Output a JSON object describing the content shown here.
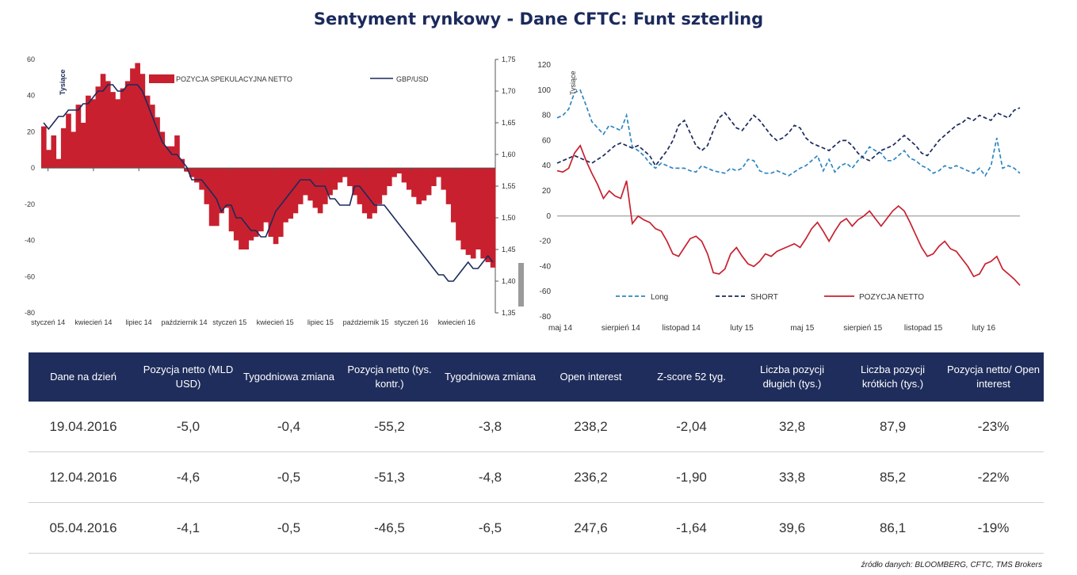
{
  "title": "Sentyment rynkowy - Dane CFTC:  Funt szterling",
  "source": "źródło danych: BLOOMBERG, CFTC, TMS Brokers",
  "colors": {
    "navy": "#1f2d5c",
    "red": "#c8202f",
    "line_navy": "#1b2a5c",
    "long_blue": "#2e86c1"
  },
  "chart_data": [
    {
      "type": "bar",
      "ylabel": "Tysiące",
      "ylim": [
        -80,
        60
      ],
      "yticks": [
        "60",
        "40",
        "20",
        "0",
        "-20",
        "-40",
        "-60",
        "-80"
      ],
      "y2lim": [
        1.35,
        1.75
      ],
      "y2ticks": [
        "1,75",
        "1,70",
        "1,65",
        "1,60",
        "1,55",
        "1,50",
        "1,45",
        "1,40",
        "1,35"
      ],
      "xticks": [
        "styczeń 14",
        "kwiecień 14",
        "lipiec 14",
        "październik 14",
        "styczeń 15",
        "kwiecień 15",
        "lipiec 15",
        "październik 15",
        "styczeń 16",
        "kwiecień 16"
      ],
      "series": [
        {
          "name": "POZYCJA SPEKULACYJNA NETTO",
          "type": "bar",
          "axis": "left",
          "values": [
            23,
            10,
            18,
            5,
            22,
            30,
            20,
            35,
            25,
            40,
            38,
            45,
            52,
            48,
            42,
            38,
            44,
            48,
            55,
            58,
            52,
            40,
            35,
            28,
            20,
            12,
            12,
            18,
            5,
            -2,
            -5,
            -8,
            -12,
            -20,
            -32,
            -32,
            -25,
            -22,
            -35,
            -40,
            -45,
            -45,
            -40,
            -38,
            -35,
            -30,
            -38,
            -42,
            -38,
            -30,
            -28,
            -25,
            -20,
            -15,
            -18,
            -22,
            -25,
            -20,
            -15,
            -12,
            -8,
            -5,
            -10,
            -15,
            -20,
            -25,
            -28,
            -25,
            -20,
            -15,
            -10,
            -5,
            -3,
            -8,
            -12,
            -16,
            -20,
            -18,
            -15,
            -10,
            -5,
            -12,
            -20,
            -30,
            -40,
            -45,
            -48,
            -50,
            -45,
            -50,
            -52,
            -55
          ]
        },
        {
          "name": "GBP/USD",
          "type": "line",
          "axis": "right",
          "values": [
            1.65,
            1.64,
            1.65,
            1.66,
            1.66,
            1.67,
            1.67,
            1.67,
            1.68,
            1.68,
            1.69,
            1.7,
            1.7,
            1.71,
            1.71,
            1.7,
            1.7,
            1.71,
            1.71,
            1.71,
            1.7,
            1.68,
            1.66,
            1.64,
            1.62,
            1.61,
            1.6,
            1.6,
            1.59,
            1.58,
            1.56,
            1.56,
            1.56,
            1.55,
            1.54,
            1.53,
            1.51,
            1.52,
            1.52,
            1.5,
            1.5,
            1.49,
            1.48,
            1.48,
            1.47,
            1.47,
            1.49,
            1.51,
            1.52,
            1.53,
            1.54,
            1.55,
            1.56,
            1.56,
            1.56,
            1.55,
            1.55,
            1.55,
            1.53,
            1.53,
            1.52,
            1.52,
            1.52,
            1.55,
            1.55,
            1.54,
            1.53,
            1.52,
            1.52,
            1.52,
            1.51,
            1.5,
            1.49,
            1.48,
            1.47,
            1.46,
            1.45,
            1.44,
            1.43,
            1.42,
            1.41,
            1.41,
            1.4,
            1.4,
            1.41,
            1.42,
            1.43,
            1.42,
            1.42,
            1.43,
            1.44,
            1.43
          ]
        }
      ]
    },
    {
      "type": "line",
      "ylabel": "Tysiące",
      "ylim": [
        -80,
        120
      ],
      "yticks": [
        "120",
        "100",
        "80",
        "60",
        "40",
        "20",
        "0",
        "-20",
        "-40",
        "-60",
        "-80"
      ],
      "xticks": [
        "maj 14",
        "sierpień 14",
        "listopad 14",
        "luty 15",
        "maj 15",
        "sierpień 15",
        "listopad 15",
        "luty 16"
      ],
      "series": [
        {
          "name": "Long",
          "style": "dashed",
          "color": "#2e86c1",
          "values": [
            78,
            80,
            85,
            98,
            100,
            88,
            75,
            70,
            65,
            72,
            70,
            68,
            80,
            55,
            52,
            48,
            42,
            38,
            42,
            40,
            38,
            38,
            38,
            36,
            35,
            40,
            38,
            36,
            35,
            34,
            38,
            36,
            38,
            45,
            44,
            36,
            34,
            34,
            36,
            34,
            32,
            35,
            38,
            40,
            44,
            48,
            36,
            45,
            35,
            40,
            42,
            38,
            44,
            48,
            55,
            52,
            50,
            44,
            44,
            48,
            52,
            46,
            44,
            40,
            38,
            34,
            36,
            40,
            38,
            40,
            38,
            36,
            34,
            38,
            32,
            40,
            62,
            38,
            40,
            38,
            34
          ]
        },
        {
          "name": "SHORT",
          "style": "dashed",
          "color": "#1b2a5c",
          "values": [
            42,
            44,
            46,
            48,
            46,
            44,
            42,
            45,
            48,
            52,
            56,
            58,
            56,
            54,
            56,
            52,
            48,
            40,
            46,
            52,
            60,
            72,
            76,
            66,
            56,
            52,
            56,
            68,
            78,
            82,
            76,
            70,
            68,
            74,
            80,
            76,
            70,
            64,
            60,
            62,
            66,
            72,
            70,
            62,
            58,
            56,
            54,
            52,
            56,
            60,
            60,
            56,
            50,
            46,
            44,
            48,
            52,
            54,
            56,
            60,
            64,
            60,
            56,
            50,
            48,
            54,
            60,
            64,
            68,
            72,
            74,
            78,
            76,
            80,
            78,
            76,
            82,
            80,
            78,
            84,
            86
          ]
        },
        {
          "name": "POZYCJA NETTO",
          "style": "solid",
          "color": "#c8202f",
          "values": [
            36,
            35,
            38,
            50,
            56,
            44,
            34,
            25,
            14,
            20,
            16,
            14,
            28,
            -6,
            0,
            -3,
            -5,
            -10,
            -12,
            -20,
            -30,
            -32,
            -25,
            -18,
            -16,
            -20,
            -30,
            -45,
            -46,
            -42,
            -30,
            -25,
            -32,
            -38,
            -40,
            -36,
            -30,
            -32,
            -28,
            -26,
            -24,
            -22,
            -25,
            -18,
            -10,
            -5,
            -12,
            -20,
            -12,
            -5,
            -2,
            -8,
            -3,
            0,
            4,
            -2,
            -8,
            -2,
            4,
            8,
            4,
            -5,
            -15,
            -25,
            -32,
            -30,
            -24,
            -20,
            -26,
            -28,
            -34,
            -40,
            -48,
            -46,
            -38,
            -36,
            -32,
            -42,
            -46,
            -50,
            -55
          ]
        }
      ]
    }
  ],
  "table": {
    "headers": [
      "Dane na dzień",
      "Pozycja netto (MLD USD)",
      "Tygodniowa zmiana",
      "Pozycja netto (tys. kontr.)",
      "Tygodniowa zmiana",
      "Open interest",
      "Z-score 52 tyg.",
      "Liczba pozycji długich (tys.)",
      "Liczba pozycji krótkich (tys.)",
      "Pozycja netto/ Open interest"
    ],
    "rows": [
      [
        "19.04.2016",
        "-5,0",
        "-0,4",
        "-55,2",
        "-3,8",
        "238,2",
        "-2,04",
        "32,8",
        "87,9",
        "-23%"
      ],
      [
        "12.04.2016",
        "-4,6",
        "-0,5",
        "-51,3",
        "-4,8",
        "236,2",
        "-1,90",
        "33,8",
        "85,2",
        "-22%"
      ],
      [
        "05.04.2016",
        "-4,1",
        "-0,5",
        "-46,5",
        "-6,5",
        "247,6",
        "-1,64",
        "39,6",
        "86,1",
        "-19%"
      ]
    ]
  }
}
